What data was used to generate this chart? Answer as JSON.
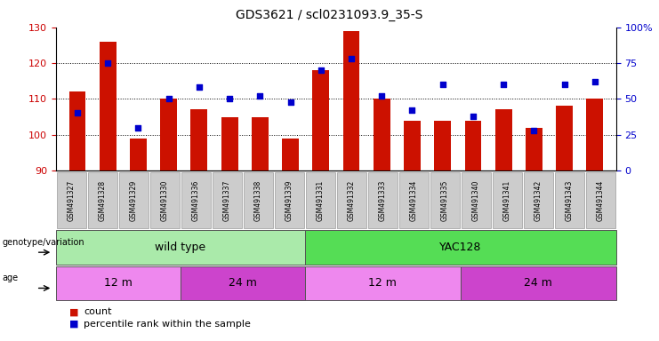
{
  "title": "GDS3621 / scl0231093.9_35-S",
  "samples": [
    "GSM491327",
    "GSM491328",
    "GSM491329",
    "GSM491330",
    "GSM491336",
    "GSM491337",
    "GSM491338",
    "GSM491339",
    "GSM491331",
    "GSM491332",
    "GSM491333",
    "GSM491334",
    "GSM491335",
    "GSM491340",
    "GSM491341",
    "GSM491342",
    "GSM491343",
    "GSM491344"
  ],
  "counts": [
    112,
    126,
    99,
    110,
    107,
    105,
    105,
    99,
    118,
    129,
    110,
    104,
    104,
    104,
    107,
    102,
    108,
    110
  ],
  "percentiles": [
    40,
    75,
    30,
    50,
    58,
    50,
    52,
    48,
    70,
    78,
    52,
    42,
    60,
    38,
    60,
    28,
    60,
    62
  ],
  "ylim_left": [
    90,
    130
  ],
  "ylim_right": [
    0,
    100
  ],
  "yticks_left": [
    90,
    100,
    110,
    120,
    130
  ],
  "yticks_right": [
    0,
    25,
    50,
    75,
    100
  ],
  "ytick_labels_right": [
    "0",
    "25",
    "50",
    "75",
    "100%"
  ],
  "bar_color": "#CC1100",
  "dot_color": "#0000CC",
  "bar_bottom": 90,
  "genotype_groups": [
    {
      "label": "wild type",
      "start": 0,
      "end": 8,
      "color": "#AAEAAA"
    },
    {
      "label": "YAC128",
      "start": 8,
      "end": 18,
      "color": "#55DD55"
    }
  ],
  "age_groups": [
    {
      "label": "12 m",
      "start": 0,
      "end": 4,
      "color": "#EE88EE"
    },
    {
      "label": "24 m",
      "start": 4,
      "end": 8,
      "color": "#CC44CC"
    },
    {
      "label": "12 m",
      "start": 8,
      "end": 13,
      "color": "#EE88EE"
    },
    {
      "label": "24 m",
      "start": 13,
      "end": 18,
      "color": "#CC44CC"
    }
  ],
  "legend_count_color": "#CC1100",
  "legend_dot_color": "#0000CC",
  "tick_label_color_left": "#CC0000",
  "tick_label_color_right": "#0000CC",
  "xtick_bg_color": "#CCCCCC",
  "grid_yticks": [
    100,
    110,
    120
  ]
}
